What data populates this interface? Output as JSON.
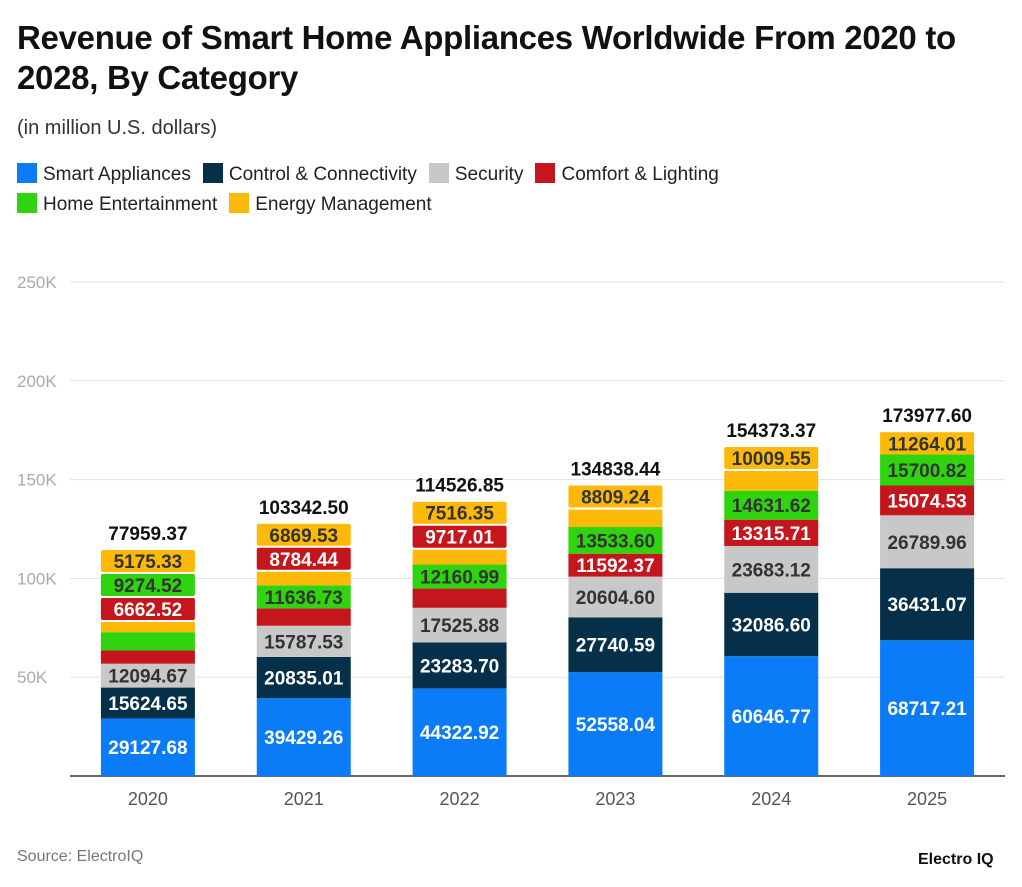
{
  "title": "Revenue of Smart Home Appliances Worldwide From 2020 to 2028, By Category",
  "subtitle": "(in million U.S. dollars)",
  "source": "Source: ElectroIQ",
  "logo": "Electro IQ",
  "chart_data": {
    "type": "bar",
    "stacked": true,
    "categories": [
      "2020",
      "2021",
      "2022",
      "2023",
      "2024",
      "2025"
    ],
    "ylim": [
      0,
      250000
    ],
    "yticks": [
      50000,
      100000,
      150000,
      200000,
      250000
    ],
    "ytick_labels": [
      "50K",
      "100K",
      "150K",
      "200K",
      "250K"
    ],
    "grid": true,
    "legend_position": "top",
    "totals": [
      "77959.37",
      "103342.50",
      "114526.85",
      "134838.44",
      "154373.37",
      "173977.60"
    ],
    "series": [
      {
        "name": "Smart Appliances",
        "color": "#0a7cf7",
        "label_color": "#ffffff",
        "values": [
          29127.68,
          39429.26,
          44322.92,
          52558.04,
          60646.77,
          68717.21
        ]
      },
      {
        "name": "Control & Connectivity",
        "color": "#06304a",
        "label_color": "#ffffff",
        "values": [
          15624.65,
          20835.01,
          23283.7,
          27740.59,
          32086.6,
          36431.07
        ]
      },
      {
        "name": "Security",
        "color": "#c8c8c8",
        "label_color": "#333333",
        "values": [
          12094.67,
          15787.53,
          17525.88,
          20604.6,
          23683.12,
          26789.96
        ]
      },
      {
        "name": "Comfort & Lighting",
        "color": "#c4161c",
        "label_color": "#ffffff",
        "values": [
          6662.52,
          8784.44,
          9717.01,
          11592.37,
          13315.71,
          15074.53
        ]
      },
      {
        "name": "Home Entertainment",
        "color": "#2fd40f",
        "label_color": "#333333",
        "values": [
          9274.52,
          11636.73,
          12160.99,
          13533.6,
          14631.62,
          15700.82
        ]
      },
      {
        "name": "Energy Management",
        "color": "#fcb90a",
        "label_color": "#333333",
        "values": [
          5175.33,
          6869.53,
          7516.35,
          8809.24,
          10009.55,
          11264.01
        ]
      }
    ]
  }
}
